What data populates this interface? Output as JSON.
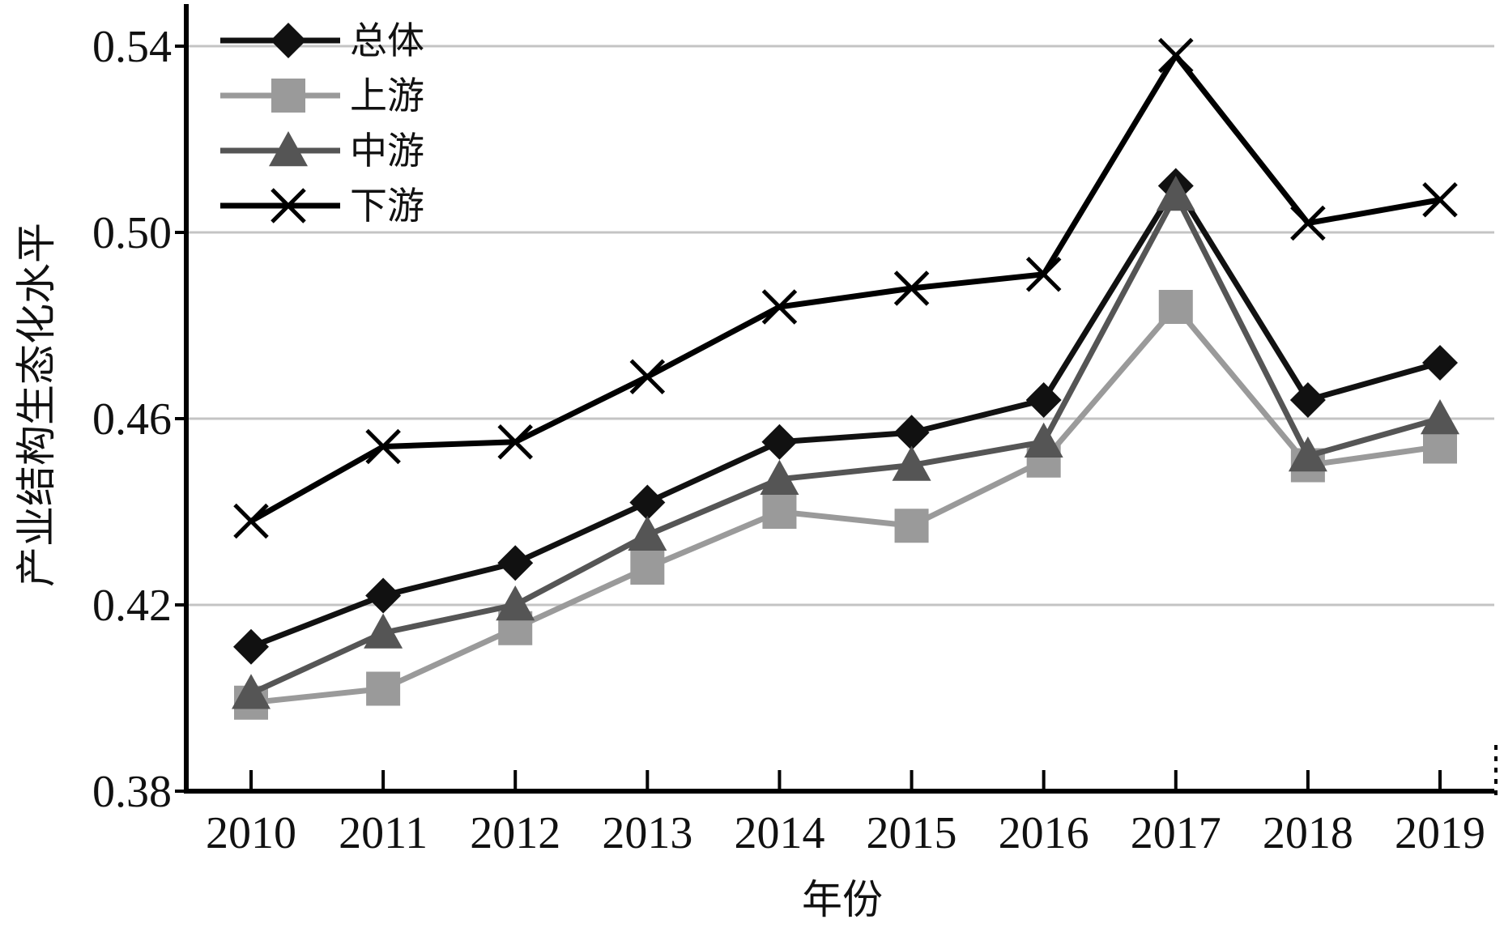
{
  "chart_data": {
    "type": "line",
    "title": "",
    "xlabel": "年份",
    "ylabel": "产业结构生态化水平",
    "categories": [
      "2010",
      "2011",
      "2012",
      "2013",
      "2014",
      "2015",
      "2016",
      "2017",
      "2018",
      "2019"
    ],
    "ylim": [
      0.38,
      0.54
    ],
    "yticks": [
      "0.38",
      "0.42",
      "0.46",
      "0.50",
      "0.54"
    ],
    "grid": true,
    "legend_position": "top-left",
    "series": [
      {
        "name": "总体",
        "marker": "diamond",
        "color": "#111111",
        "values": [
          0.411,
          0.422,
          0.429,
          0.442,
          0.455,
          0.457,
          0.464,
          0.51,
          0.464,
          0.472
        ]
      },
      {
        "name": "上游",
        "marker": "square",
        "color": "#9a9a9a",
        "values": [
          0.399,
          0.402,
          0.415,
          0.428,
          0.44,
          0.437,
          0.451,
          0.484,
          0.45,
          0.454
        ]
      },
      {
        "name": "中游",
        "marker": "triangle",
        "color": "#555555",
        "values": [
          0.401,
          0.414,
          0.42,
          0.435,
          0.447,
          0.45,
          0.455,
          0.508,
          0.452,
          0.46
        ]
      },
      {
        "name": "下游",
        "marker": "x",
        "color": "#000000",
        "values": [
          0.438,
          0.454,
          0.455,
          0.469,
          0.484,
          0.488,
          0.491,
          0.538,
          0.502,
          0.507
        ]
      }
    ]
  }
}
